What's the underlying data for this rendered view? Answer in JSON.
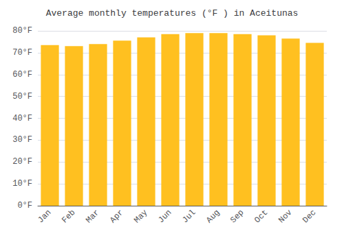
{
  "chart_data": {
    "type": "bar",
    "title": "Average monthly temperatures (°F ) in Aceitunas",
    "categories": [
      "Jan",
      "Feb",
      "Mar",
      "Apr",
      "May",
      "Jun",
      "Jul",
      "Aug",
      "Sep",
      "Oct",
      "Nov",
      "Dec"
    ],
    "values": [
      73.5,
      73.0,
      74.0,
      75.5,
      77.0,
      78.5,
      79.0,
      79.0,
      78.5,
      78.0,
      76.5,
      74.5
    ],
    "color": "#FFC020",
    "ylim": [
      0,
      80
    ],
    "yticks": [
      {
        "value": 0,
        "label": "0°F"
      },
      {
        "value": 10,
        "label": "10°F"
      },
      {
        "value": 20,
        "label": "20°F"
      },
      {
        "value": 30,
        "label": "30°F"
      },
      {
        "value": 40,
        "label": "40°F"
      },
      {
        "value": 50,
        "label": "50°F"
      },
      {
        "value": 60,
        "label": "60°F"
      },
      {
        "value": 70,
        "label": "70°F"
      },
      {
        "value": 80,
        "label": "80°F"
      }
    ],
    "grid": true
  }
}
